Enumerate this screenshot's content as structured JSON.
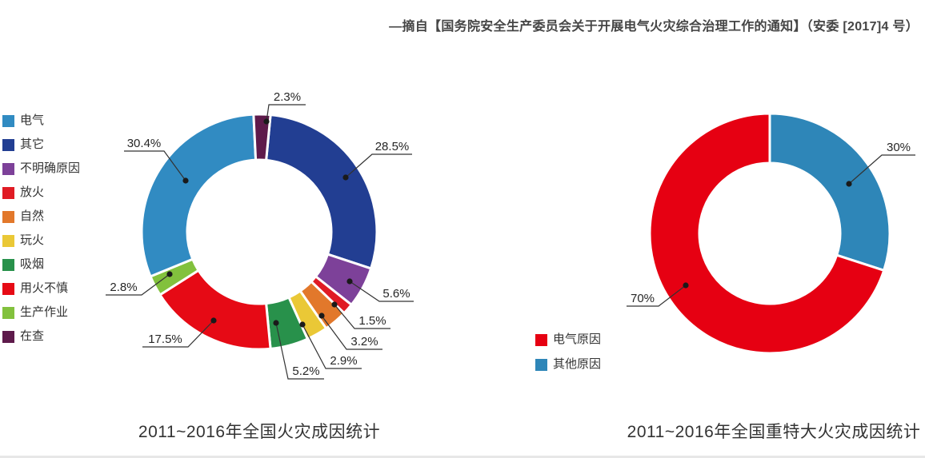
{
  "caption": "—摘自【国务院安全生产委员会关于开展电气火灾综合治理工作的通知】（安委 [2017]4 号）",
  "chart_data": [
    {
      "type": "pie",
      "subtype": "donut",
      "title": "2011~2016年全国火灾成因统计",
      "unit": "%",
      "legend_position": "left",
      "labels_position": "outside-with-leader-lines",
      "hole_ratio": 0.61,
      "series": [
        {
          "label": "电气",
          "value": 30.4,
          "color": "#318bc2"
        },
        {
          "label": "其它",
          "value": 28.5,
          "color": "#223e92"
        },
        {
          "label": "不明确原因",
          "value": 5.6,
          "color": "#7d4199"
        },
        {
          "label": "放火",
          "value": 1.5,
          "color": "#e01b24"
        },
        {
          "label": "自然",
          "value": 3.2,
          "color": "#e2782b"
        },
        {
          "label": "玩火",
          "value": 2.9,
          "color": "#eac836"
        },
        {
          "label": "吸烟",
          "value": 5.2,
          "color": "#28914b"
        },
        {
          "label": "用火不慎",
          "value": 17.5,
          "color": "#e60a15"
        },
        {
          "label": "生产作业",
          "value": 2.8,
          "color": "#82c13d"
        },
        {
          "label": "在查",
          "value": 2.3,
          "color": "#5e1a4b"
        }
      ],
      "clockwise_order_from_top": [
        "其它",
        "不明确原因",
        "放火",
        "自然",
        "玩火",
        "吸烟",
        "用火不慎",
        "生产作业",
        "电气",
        "在查"
      ]
    },
    {
      "type": "pie",
      "subtype": "donut",
      "title": "2011~2016年全国重特大火灾成因统计",
      "unit": "%",
      "legend_position": "bottom-left",
      "labels_position": "outside-with-leader-lines",
      "hole_ratio": 0.58,
      "series": [
        {
          "label": "电气原因",
          "value": 70,
          "color": "#e60012"
        },
        {
          "label": "其他原因",
          "value": 30,
          "color": "#2e86b8"
        }
      ],
      "clockwise_order_from_top": [
        "其他原因",
        "电气原因"
      ]
    }
  ]
}
